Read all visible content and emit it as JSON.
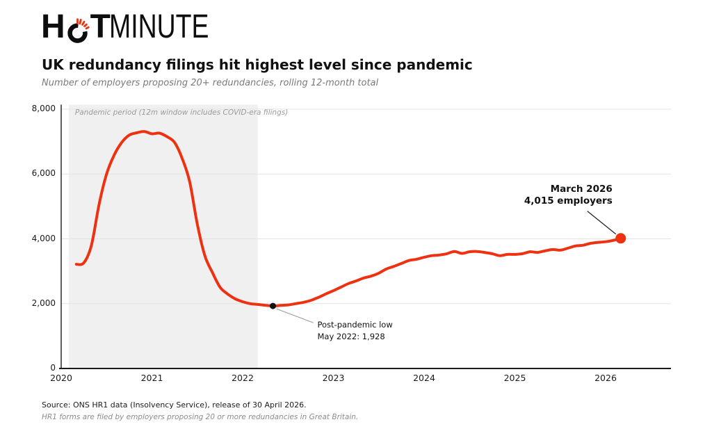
{
  "logo": {
    "h": "H",
    "t": "T",
    "rest": "MINUTE",
    "o_icon_color": "#ee3211",
    "ink": "#0d0d0d"
  },
  "header": {
    "title": "UK redundancy filings hit highest level since pandemic",
    "subtitle": "Number of employers proposing 20+ redundancies, rolling 12-month total"
  },
  "chart_data": {
    "type": "line",
    "title": "UK redundancy filings hit highest level since pandemic",
    "subtitle": "Number of employers proposing 20+ redundancies, rolling 12-month total",
    "xlabel": "",
    "ylabel": "",
    "ylim": [
      0,
      8150
    ],
    "xlim": [
      2020,
      2026.7
    ],
    "grid": "horizontal",
    "legend": "none",
    "line_color": "#ee3211",
    "months": [
      "2020-03",
      "2020-04",
      "2020-05",
      "2020-06",
      "2020-07",
      "2020-08",
      "2020-09",
      "2020-10",
      "2020-11",
      "2020-12",
      "2021-01",
      "2021-02",
      "2021-03",
      "2021-04",
      "2021-05",
      "2021-06",
      "2021-07",
      "2021-08",
      "2021-09",
      "2021-10",
      "2021-11",
      "2021-12",
      "2022-01",
      "2022-02",
      "2022-03",
      "2022-04",
      "2022-05",
      "2022-06",
      "2022-07",
      "2022-08",
      "2022-09",
      "2022-10",
      "2022-11",
      "2022-12",
      "2023-01",
      "2023-02",
      "2023-03",
      "2023-04",
      "2023-05",
      "2023-06",
      "2023-07",
      "2023-08",
      "2023-09",
      "2023-10",
      "2023-11",
      "2023-12",
      "2024-01",
      "2024-02",
      "2024-03",
      "2024-04",
      "2024-05",
      "2024-06",
      "2024-07",
      "2024-08",
      "2024-09",
      "2024-10",
      "2024-11",
      "2024-12",
      "2025-01",
      "2025-02",
      "2025-03",
      "2025-04",
      "2025-05",
      "2025-06",
      "2025-07",
      "2025-08",
      "2025-09",
      "2025-10",
      "2025-11",
      "2025-12",
      "2026-01",
      "2026-02",
      "2026-03"
    ],
    "values": [
      3215,
      3260,
      3800,
      5050,
      6000,
      6580,
      6970,
      7200,
      7270,
      7310,
      7240,
      7260,
      7150,
      6970,
      6480,
      5750,
      4450,
      3480,
      2960,
      2510,
      2300,
      2150,
      2060,
      2000,
      1975,
      1950,
      1928,
      1945,
      1960,
      2000,
      2040,
      2100,
      2190,
      2300,
      2400,
      2510,
      2620,
      2700,
      2790,
      2850,
      2940,
      3070,
      3150,
      3240,
      3330,
      3370,
      3430,
      3480,
      3500,
      3540,
      3610,
      3550,
      3600,
      3610,
      3580,
      3540,
      3480,
      3520,
      3520,
      3540,
      3600,
      3580,
      3630,
      3670,
      3650,
      3710,
      3780,
      3800,
      3860,
      3890,
      3910,
      3950,
      4015
    ],
    "yticks": {
      "values": [
        0,
        2000,
        4000,
        6000,
        8000
      ],
      "labels": [
        "0",
        "2,000",
        "4,000",
        "6,000",
        "8,000"
      ]
    },
    "xticks": {
      "values": [
        2020,
        2021,
        2022,
        2023,
        2024,
        2025,
        2026
      ],
      "labels": [
        "2020",
        "2021",
        "2022",
        "2023",
        "2024",
        "2025",
        "2026"
      ]
    },
    "pandemic_region": {
      "start": "2020-02",
      "end": "2022-03",
      "label": "Pandemic period (12m window includes COVID-era filings)",
      "color": "#f0f0f0"
    },
    "annotations": {
      "low": {
        "month": "2022-05",
        "value": 1928,
        "line1": "Post-pandemic low",
        "line2": "May 2022: 1,928",
        "dot_color": "#111111"
      },
      "latest": {
        "month": "2026-03",
        "value": 4015,
        "line1": "March 2026",
        "line2": "4,015 employers",
        "dot_color": "#ee3211"
      }
    }
  },
  "footer": {
    "source": "Source: ONS HR1 data (Insolvency Service), release of 30 April 2026.",
    "note": "HR1 forms are filed by employers proposing 20 or more redundancies in Great Britain."
  }
}
